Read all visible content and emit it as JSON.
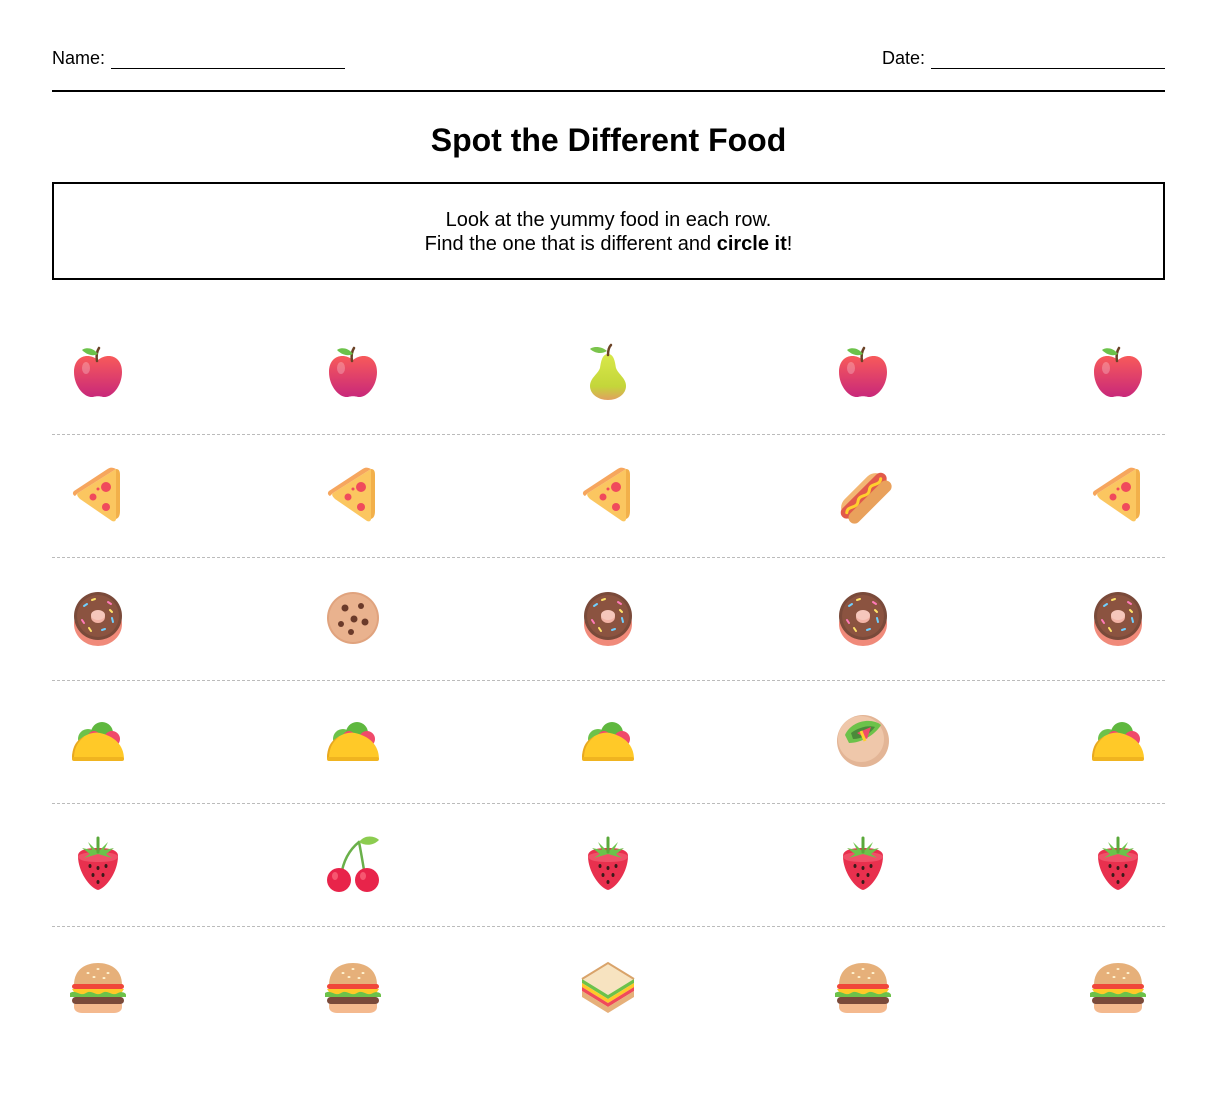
{
  "header": {
    "name_label": "Name:",
    "date_label": "Date:"
  },
  "title": "Spot the Different Food",
  "instructions": {
    "line1": "Look at the yummy food in each row.",
    "line2_prefix": "Find the one that is different and ",
    "line2_bold": "circle it",
    "line2_suffix": "!"
  },
  "rows": [
    [
      "apple",
      "apple",
      "pear",
      "apple",
      "apple"
    ],
    [
      "pizza",
      "pizza",
      "pizza",
      "hotdog",
      "pizza"
    ],
    [
      "donut",
      "cookie",
      "donut",
      "donut",
      "donut"
    ],
    [
      "taco",
      "taco",
      "taco",
      "burrito",
      "taco"
    ],
    [
      "strawberry",
      "cherries",
      "strawberry",
      "strawberry",
      "strawberry"
    ],
    [
      "hamburger",
      "hamburger",
      "sandwich",
      "hamburger",
      "hamburger"
    ]
  ]
}
